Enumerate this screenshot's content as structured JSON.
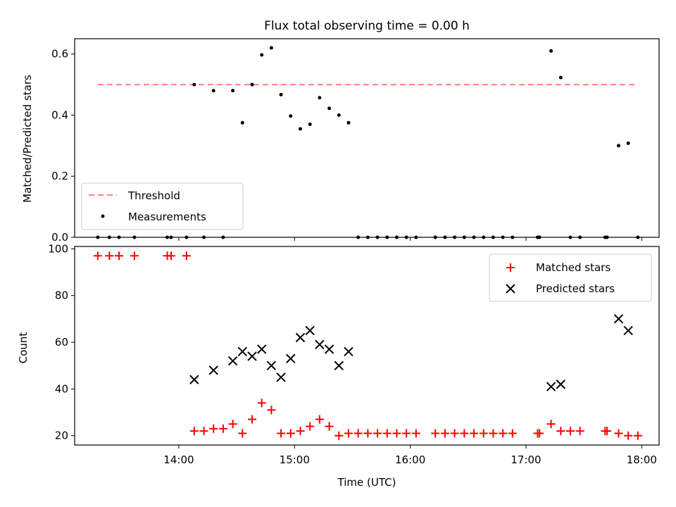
{
  "chart_data": [
    {
      "type": "scatter",
      "title": "Flux total observing time = 0.00 h",
      "ylabel": "Matched/Predicted stars",
      "xlabel": "",
      "xlim": [
        "13:06",
        "18:09"
      ],
      "ylim": [
        0,
        0.65
      ],
      "yticks": [
        0.0,
        0.2,
        0.4,
        0.6
      ],
      "ytick_labels": [
        "0.0",
        "0.2",
        "0.4",
        "0.6"
      ],
      "grid": false,
      "legend_position": "lower-left",
      "threshold": {
        "name": "Threshold",
        "value": 0.5,
        "x_range": [
          "13:18",
          "17:58"
        ],
        "color": "#ff7f7f",
        "style": "dashed"
      },
      "series": [
        {
          "name": "Measurements",
          "color": "#000000",
          "marker": "dot",
          "points": [
            [
              "13:18",
              0.0
            ],
            [
              "13:24",
              0.0
            ],
            [
              "13:29",
              0.0
            ],
            [
              "13:37",
              0.0
            ],
            [
              "13:54",
              0.0
            ],
            [
              "13:56",
              0.0
            ],
            [
              "14:04",
              0.0
            ],
            [
              "14:08",
              0.5
            ],
            [
              "14:13",
              0.0
            ],
            [
              "14:18",
              0.48
            ],
            [
              "14:23",
              0.0
            ],
            [
              "14:28",
              0.48
            ],
            [
              "14:33",
              0.375
            ],
            [
              "14:38",
              0.5
            ],
            [
              "14:43",
              0.597
            ],
            [
              "14:48",
              0.62
            ],
            [
              "14:53",
              0.467
            ],
            [
              "14:58",
              0.397
            ],
            [
              "15:03",
              0.355
            ],
            [
              "15:08",
              0.37
            ],
            [
              "15:13",
              0.457
            ],
            [
              "15:18",
              0.422
            ],
            [
              "15:23",
              0.4
            ],
            [
              "15:28",
              0.375
            ],
            [
              "15:33",
              0.0
            ],
            [
              "15:38",
              0.0
            ],
            [
              "15:43",
              0.0
            ],
            [
              "15:48",
              0.0
            ],
            [
              "15:53",
              0.0
            ],
            [
              "15:58",
              0.0
            ],
            [
              "16:03",
              0.0
            ],
            [
              "16:13",
              0.0
            ],
            [
              "16:18",
              0.0
            ],
            [
              "16:23",
              0.0
            ],
            [
              "16:28",
              0.0
            ],
            [
              "16:33",
              0.0
            ],
            [
              "16:38",
              0.0
            ],
            [
              "16:43",
              0.0
            ],
            [
              "16:48",
              0.0
            ],
            [
              "16:53",
              0.0
            ],
            [
              "17:06",
              0.0
            ],
            [
              "17:07",
              0.0
            ],
            [
              "17:13",
              0.61
            ],
            [
              "17:18",
              0.523
            ],
            [
              "17:23",
              0.0
            ],
            [
              "17:28",
              0.0
            ],
            [
              "17:41",
              0.0
            ],
            [
              "17:42",
              0.0
            ],
            [
              "17:48",
              0.3
            ],
            [
              "17:53",
              0.308
            ],
            [
              "17:58",
              0.0
            ]
          ]
        }
      ]
    },
    {
      "type": "scatter",
      "title": "",
      "ylabel": "Count",
      "xlabel": "Time (UTC)",
      "xlim": [
        "13:06",
        "18:09"
      ],
      "ylim": [
        16,
        101
      ],
      "xticks": [
        "14:00",
        "15:00",
        "16:00",
        "17:00",
        "18:00"
      ],
      "yticks": [
        20,
        40,
        60,
        80,
        100
      ],
      "ytick_labels": [
        "20",
        "40",
        "60",
        "80",
        "100"
      ],
      "grid": false,
      "legend_position": "upper-right",
      "series": [
        {
          "name": "Matched stars",
          "color": "#ff0000",
          "marker": "plus",
          "points": [
            [
              "13:18",
              97
            ],
            [
              "13:24",
              97
            ],
            [
              "13:29",
              97
            ],
            [
              "13:37",
              97
            ],
            [
              "13:54",
              97
            ],
            [
              "13:56",
              97
            ],
            [
              "14:04",
              97
            ],
            [
              "14:08",
              22
            ],
            [
              "14:13",
              22
            ],
            [
              "14:18",
              23
            ],
            [
              "14:23",
              23
            ],
            [
              "14:28",
              25
            ],
            [
              "14:33",
              21
            ],
            [
              "14:38",
              27
            ],
            [
              "14:43",
              34
            ],
            [
              "14:48",
              31
            ],
            [
              "14:53",
              21
            ],
            [
              "14:58",
              21
            ],
            [
              "15:03",
              22
            ],
            [
              "15:08",
              24
            ],
            [
              "15:13",
              27
            ],
            [
              "15:18",
              24
            ],
            [
              "15:23",
              20
            ],
            [
              "15:28",
              21
            ],
            [
              "15:33",
              21
            ],
            [
              "15:38",
              21
            ],
            [
              "15:43",
              21
            ],
            [
              "15:48",
              21
            ],
            [
              "15:53",
              21
            ],
            [
              "15:58",
              21
            ],
            [
              "16:03",
              21
            ],
            [
              "16:13",
              21
            ],
            [
              "16:18",
              21
            ],
            [
              "16:23",
              21
            ],
            [
              "16:28",
              21
            ],
            [
              "16:33",
              21
            ],
            [
              "16:38",
              21
            ],
            [
              "16:43",
              21
            ],
            [
              "16:48",
              21
            ],
            [
              "16:53",
              21
            ],
            [
              "17:06",
              21
            ],
            [
              "17:07",
              21
            ],
            [
              "17:13",
              25
            ],
            [
              "17:18",
              22
            ],
            [
              "17:23",
              22
            ],
            [
              "17:28",
              22
            ],
            [
              "17:41",
              22
            ],
            [
              "17:42",
              22
            ],
            [
              "17:48",
              21
            ],
            [
              "17:53",
              20
            ],
            [
              "17:58",
              20
            ]
          ]
        },
        {
          "name": "Predicted stars",
          "color": "#000000",
          "marker": "x",
          "points": [
            [
              "14:08",
              44
            ],
            [
              "14:18",
              48
            ],
            [
              "14:28",
              52
            ],
            [
              "14:33",
              56
            ],
            [
              "14:38",
              54
            ],
            [
              "14:43",
              57
            ],
            [
              "14:48",
              50
            ],
            [
              "14:53",
              45
            ],
            [
              "14:58",
              53
            ],
            [
              "15:03",
              62
            ],
            [
              "15:08",
              65
            ],
            [
              "15:13",
              59
            ],
            [
              "15:18",
              57
            ],
            [
              "15:23",
              50
            ],
            [
              "15:28",
              56
            ],
            [
              "17:13",
              41
            ],
            [
              "17:18",
              42
            ],
            [
              "17:48",
              70
            ],
            [
              "17:53",
              65
            ]
          ]
        }
      ]
    }
  ]
}
